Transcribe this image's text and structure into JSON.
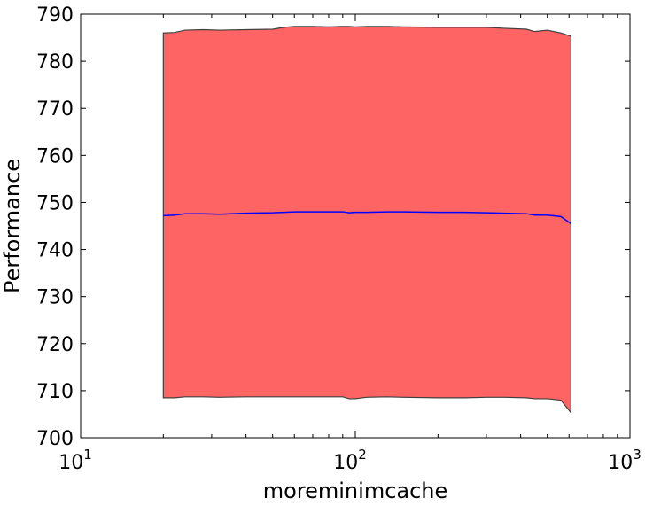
{
  "chart_data": {
    "type": "area",
    "xlabel": "moreminimcache",
    "ylabel": "Performance",
    "xscale": "log",
    "xlim": [
      10,
      1000
    ],
    "ylim": [
      700,
      790
    ],
    "yticks": [
      700,
      710,
      720,
      730,
      740,
      750,
      760,
      770,
      780,
      790
    ],
    "xticks": [
      {
        "value": 10,
        "base": "10",
        "exp": "1"
      },
      {
        "value": 100,
        "base": "10",
        "exp": "2"
      },
      {
        "value": 1000,
        "base": "10",
        "exp": "3"
      }
    ],
    "x": [
      20,
      22,
      24,
      28,
      32,
      40,
      50,
      55,
      60,
      70,
      80,
      90,
      95,
      100,
      110,
      130,
      150,
      200,
      250,
      300,
      350,
      420,
      450,
      500,
      560,
      610
    ],
    "series": [
      {
        "kind": "mean",
        "values": [
          747.2,
          747.3,
          747.6,
          747.6,
          747.5,
          747.7,
          747.8,
          747.9,
          748.0,
          748.0,
          748.0,
          748.0,
          747.8,
          747.9,
          747.9,
          748.0,
          748.0,
          747.9,
          747.9,
          747.8,
          747.7,
          747.6,
          747.3,
          747.3,
          747.0,
          745.5
        ]
      },
      {
        "kind": "upper",
        "values": [
          786.0,
          786.1,
          786.6,
          786.7,
          786.6,
          786.7,
          786.8,
          787.2,
          787.4,
          787.4,
          787.3,
          787.4,
          787.4,
          787.3,
          787.4,
          787.4,
          787.3,
          787.2,
          787.2,
          787.2,
          787.0,
          786.8,
          786.3,
          786.6,
          786.0,
          785.3
        ]
      },
      {
        "kind": "lower",
        "values": [
          708.5,
          708.5,
          708.7,
          708.7,
          708.6,
          708.7,
          708.7,
          708.7,
          708.7,
          708.7,
          708.7,
          708.7,
          708.3,
          708.3,
          708.6,
          708.7,
          708.6,
          708.5,
          708.5,
          708.6,
          708.6,
          708.5,
          708.3,
          708.3,
          708.0,
          705.3
        ]
      }
    ],
    "colors": {
      "band_fill": "#ff6464",
      "band_edge": "#404040",
      "mean_line": "#0000ff",
      "axes": "#000000"
    },
    "grid": false,
    "legend": "none"
  }
}
